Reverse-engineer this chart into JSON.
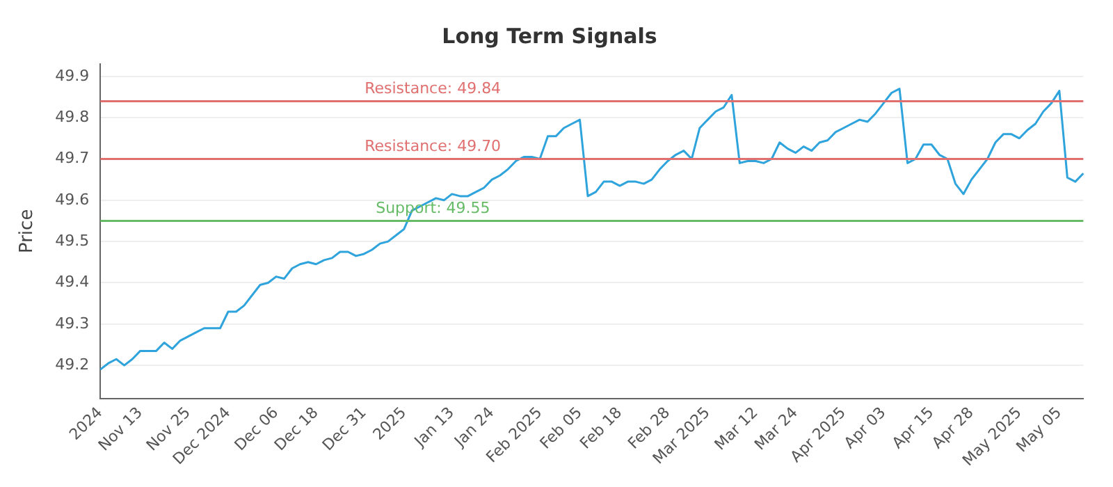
{
  "chart_data": {
    "type": "line",
    "title": "Long Term Signals",
    "ylabel": "Price",
    "categories": [
      "2024",
      null,
      null,
      null,
      null,
      "Nov 13",
      null,
      null,
      null,
      null,
      null,
      "Nov 25",
      null,
      null,
      null,
      null,
      "Dec 2024",
      null,
      null,
      null,
      null,
      null,
      "Dec 06",
      null,
      null,
      null,
      null,
      "Dec 18",
      null,
      null,
      null,
      null,
      null,
      "Dec 31",
      null,
      null,
      null,
      null,
      "2025",
      null,
      null,
      null,
      null,
      null,
      "Jan 13",
      null,
      null,
      null,
      null,
      "Jan 24",
      null,
      null,
      null,
      null,
      null,
      "Feb 2025",
      null,
      null,
      null,
      null,
      "Feb 05",
      null,
      null,
      null,
      null,
      "Feb 18",
      null,
      null,
      null,
      null,
      null,
      "Feb 28",
      null,
      null,
      null,
      null,
      "Mar 2025",
      null,
      null,
      null,
      null,
      null,
      "Mar 12",
      null,
      null,
      null,
      null,
      "Mar 24",
      null,
      null,
      null,
      null,
      null,
      "Apr 2025",
      null,
      null,
      null,
      null,
      "Apr 03",
      null,
      null,
      null,
      null,
      null,
      "Apr 15",
      null,
      null,
      null,
      null,
      "Apr 28",
      null,
      null,
      null,
      null,
      null,
      "May 2025",
      null,
      null,
      null,
      null,
      "May 05",
      null,
      null,
      null
    ],
    "series": [
      {
        "color": "#2ea3dc",
        "values": [
          49.19,
          49.205,
          49.215,
          49.2,
          49.215,
          49.235,
          49.235,
          49.235,
          49.255,
          49.24,
          49.26,
          49.27,
          49.28,
          49.29,
          49.29,
          49.29,
          49.33,
          49.33,
          49.345,
          49.37,
          49.395,
          49.4,
          49.415,
          49.41,
          49.435,
          49.445,
          49.45,
          49.445,
          49.455,
          49.46,
          49.475,
          49.475,
          49.465,
          49.47,
          49.48,
          49.495,
          49.5,
          49.515,
          49.53,
          49.575,
          49.585,
          49.595,
          49.605,
          49.6,
          49.615,
          49.61,
          49.61,
          49.62,
          49.63,
          49.65,
          49.66,
          49.675,
          49.695,
          49.705,
          49.705,
          49.7,
          49.755,
          49.755,
          49.775,
          49.785,
          49.795,
          49.61,
          49.62,
          49.645,
          49.645,
          49.635,
          49.645,
          49.645,
          49.64,
          49.65,
          49.675,
          49.695,
          49.71,
          49.72,
          49.7,
          49.775,
          49.795,
          49.815,
          49.825,
          49.855,
          49.69,
          49.695,
          49.695,
          49.69,
          49.7,
          49.74,
          49.725,
          49.715,
          49.73,
          49.72,
          49.74,
          49.745,
          49.765,
          49.775,
          49.785,
          49.795,
          49.79,
          49.81,
          49.835,
          49.86,
          49.87,
          49.69,
          49.7,
          49.735,
          49.735,
          49.71,
          49.7,
          49.64,
          49.615,
          49.65,
          49.675,
          49.7,
          49.74,
          49.76,
          49.76,
          49.75,
          49.77,
          49.785,
          49.815,
          49.835,
          49.865,
          49.655,
          49.645,
          49.665
        ]
      }
    ],
    "ylim": [
      49.12,
      49.93
    ],
    "yticks": [
      49.2,
      49.3,
      49.4,
      49.5,
      49.6,
      49.7,
      49.8,
      49.9
    ],
    "grid": "y",
    "legend": false,
    "marker": "none",
    "line_style": "solid",
    "ref_lines": [
      {
        "axis": "y",
        "value": 49.84,
        "label": "Resistance: 49.84",
        "color": "#e07070"
      },
      {
        "axis": "y",
        "value": 49.7,
        "label": "Resistance: 49.70",
        "color": "#e07070"
      },
      {
        "axis": "y",
        "value": 49.55,
        "label": "Support: 49.55",
        "color": "#66bb66"
      }
    ]
  }
}
